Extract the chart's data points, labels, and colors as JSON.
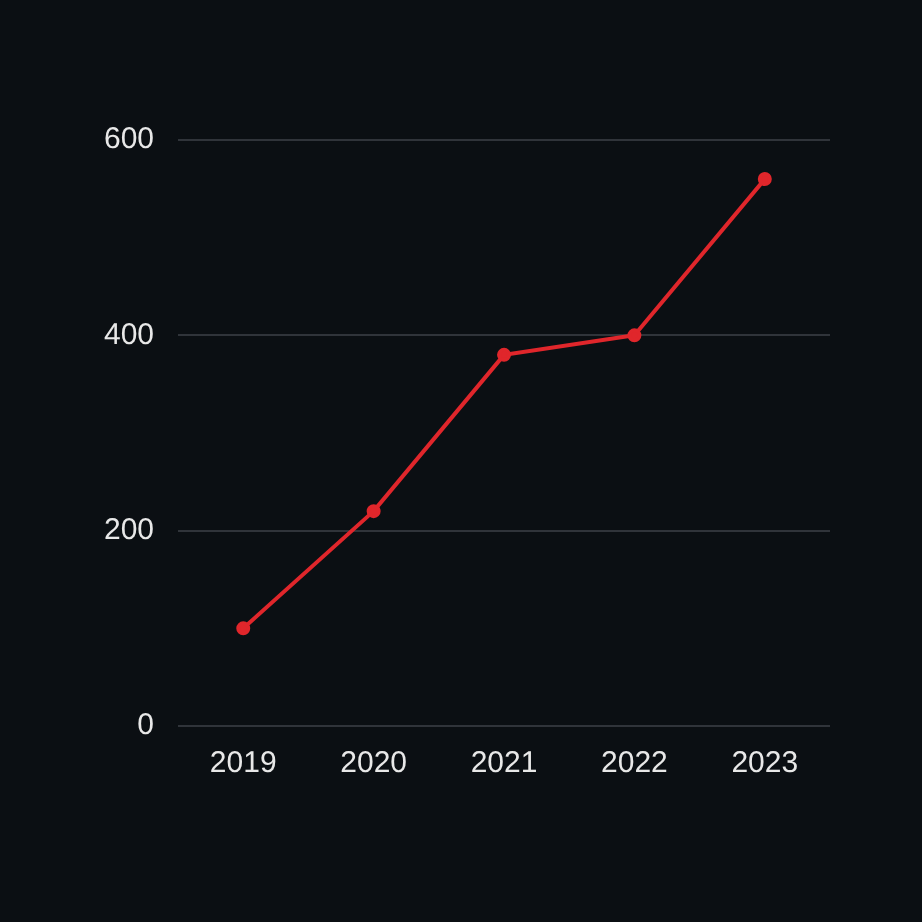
{
  "chart_data": {
    "type": "line",
    "categories": [
      "2019",
      "2020",
      "2021",
      "2022",
      "2023"
    ],
    "series": [
      {
        "color": "#e0262b",
        "values": [
          100,
          220,
          380,
          400,
          560
        ]
      }
    ],
    "ylim": [
      0,
      600
    ],
    "yticks": [
      0,
      200,
      400,
      600
    ],
    "grid": "y",
    "legend": false,
    "marker": "circle",
    "line_style": "solid"
  }
}
